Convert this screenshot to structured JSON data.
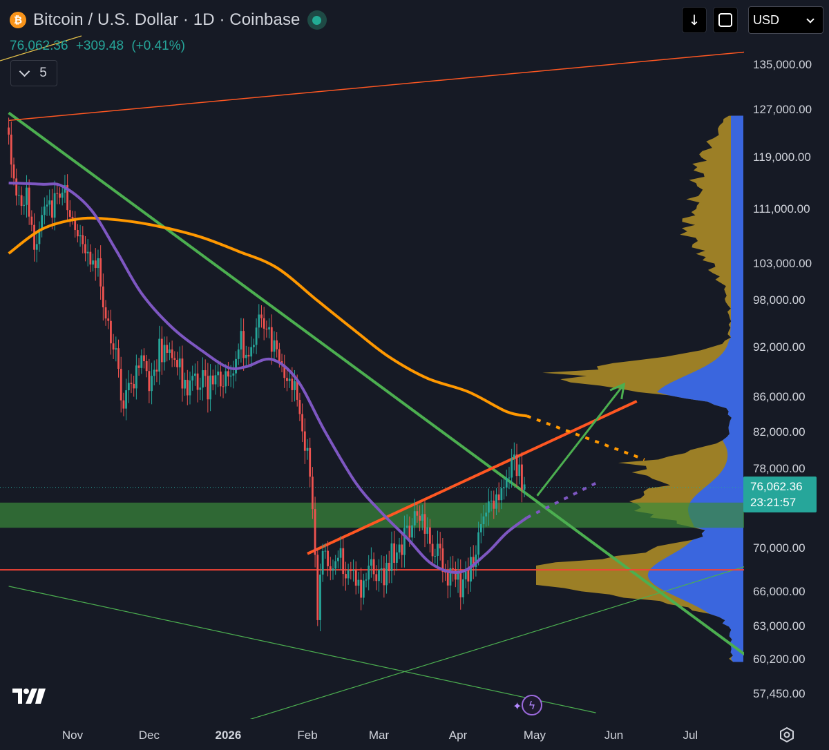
{
  "header": {
    "title": "Bitcoin / U.S. Dollar · 1D · Coinbase",
    "logo_glyph": "₿",
    "icon": "bitcoin-logo-icon"
  },
  "quote": {
    "price": "76,062.36",
    "change": "+309.48",
    "change_pct": "(+0.41%)"
  },
  "indicators_toggle": {
    "count": "5"
  },
  "toolbar": {
    "currency": "USD"
  },
  "price_tag": {
    "price": "76,062.36",
    "countdown": "23:21:57"
  },
  "colors": {
    "background": "#161a25",
    "up_candle": "#26a69a",
    "down_candle": "#ef5350",
    "ma_short": "#7e57c2",
    "ma_long": "#ff9800",
    "trend_green": "#4caf50",
    "trend_red": "#f44336",
    "volume_profile_gold": "#c9a227",
    "volume_profile_blue": "#2962ff",
    "support_zone": "#3a8a3a"
  },
  "chart_data": {
    "type": "candlestick",
    "symbol": "BTCUSD",
    "interval": "1D",
    "exchange": "Coinbase",
    "y_scale": "log",
    "ylim": [
      55000,
      142000
    ],
    "y_ticks": [
      "135,000.00",
      "127,000.00",
      "119,000.00",
      "111,000.00",
      "103,000.00",
      "98,000.00",
      "92,000.00",
      "86,000.00",
      "82,000.00",
      "78,000.00",
      "70,000.00",
      "66,000.00",
      "63,000.00",
      "60,200.00",
      "57,450.00"
    ],
    "x_ticks": [
      {
        "label": "Nov",
        "bold": false
      },
      {
        "label": "Dec",
        "bold": false
      },
      {
        "label": "2026",
        "bold": true
      },
      {
        "label": "Feb",
        "bold": false
      },
      {
        "label": "Mar",
        "bold": false
      },
      {
        "label": "Apr",
        "bold": false
      },
      {
        "label": "May",
        "bold": false
      },
      {
        "label": "Jun",
        "bold": false
      },
      {
        "label": "Jul",
        "bold": false
      }
    ],
    "xlim": [
      "2025-10-07",
      "2026-07-25"
    ],
    "price_anchors": [
      [
        "2025-10-07",
        124000
      ],
      [
        "2025-10-10",
        112000
      ],
      [
        "2025-10-14",
        112500
      ],
      [
        "2025-10-17",
        106500
      ],
      [
        "2025-10-21",
        110500
      ],
      [
        "2025-10-24",
        111200
      ],
      [
        "2025-10-29",
        113500
      ],
      [
        "2025-11-03",
        107000
      ],
      [
        "2025-11-07",
        103000
      ],
      [
        "2025-11-11",
        104500
      ],
      [
        "2025-11-14",
        96000
      ],
      [
        "2025-11-17",
        92500
      ],
      [
        "2025-11-21",
        85000
      ],
      [
        "2025-11-25",
        87500
      ],
      [
        "2025-11-28",
        91000
      ],
      [
        "2025-12-02",
        87000
      ],
      [
        "2025-12-05",
        91500
      ],
      [
        "2025-12-09",
        92000
      ],
      [
        "2025-12-12",
        90000
      ],
      [
        "2025-12-16",
        87000
      ],
      [
        "2025-12-20",
        88200
      ],
      [
        "2025-12-24",
        87200
      ],
      [
        "2025-12-28",
        87800
      ],
      [
        "2026-01-02",
        89500
      ],
      [
        "2026-01-06",
        92500
      ],
      [
        "2026-01-10",
        91000
      ],
      [
        "2026-01-14",
        96500
      ],
      [
        "2026-01-18",
        93000
      ],
      [
        "2026-01-22",
        89500
      ],
      [
        "2026-01-26",
        88000
      ],
      [
        "2026-01-30",
        83000
      ],
      [
        "2026-02-02",
        78000
      ],
      [
        "2026-02-05",
        63500
      ],
      [
        "2026-02-07",
        70000
      ],
      [
        "2026-02-10",
        68500
      ],
      [
        "2026-02-14",
        69000
      ],
      [
        "2026-02-18",
        67500
      ],
      [
        "2026-02-22",
        66500
      ],
      [
        "2026-02-26",
        68000
      ],
      [
        "2026-03-02",
        67000
      ],
      [
        "2026-03-06",
        69500
      ],
      [
        "2026-03-10",
        70500
      ],
      [
        "2026-03-14",
        72000
      ],
      [
        "2026-03-18",
        74000
      ],
      [
        "2026-03-21",
        70000
      ],
      [
        "2026-03-25",
        69000
      ],
      [
        "2026-03-29",
        67200
      ],
      [
        "2026-04-02",
        66500
      ],
      [
        "2026-04-06",
        68500
      ],
      [
        "2026-04-10",
        71500
      ],
      [
        "2026-04-14",
        74000
      ],
      [
        "2026-04-18",
        76500
      ],
      [
        "2026-04-22",
        78500
      ],
      [
        "2026-04-25",
        78000
      ],
      [
        "2026-04-27",
        76062
      ]
    ],
    "ma_short": [
      [
        "2025-10-07",
        115000
      ],
      [
        "2025-10-20",
        114800
      ],
      [
        "2025-10-28",
        114500
      ],
      [
        "2025-11-08",
        111000
      ],
      [
        "2025-11-18",
        105000
      ],
      [
        "2025-11-28",
        99000
      ],
      [
        "2025-12-10",
        94500
      ],
      [
        "2025-12-22",
        91500
      ],
      [
        "2026-01-01",
        89500
      ],
      [
        "2026-01-08",
        89600
      ],
      [
        "2026-01-18",
        90500
      ],
      [
        "2026-01-28",
        88000
      ],
      [
        "2026-02-08",
        82000
      ],
      [
        "2026-02-20",
        76500
      ],
      [
        "2026-03-02",
        73500
      ],
      [
        "2026-03-12",
        71000
      ],
      [
        "2026-03-22",
        68500
      ],
      [
        "2026-04-02",
        67800
      ],
      [
        "2026-04-12",
        69500
      ],
      [
        "2026-04-20",
        71500
      ],
      [
        "2026-04-28",
        73000
      ]
    ],
    "ma_long": [
      [
        "2025-10-07",
        104500
      ],
      [
        "2025-10-20",
        108000
      ],
      [
        "2025-11-03",
        109500
      ],
      [
        "2025-11-15",
        109500
      ],
      [
        "2025-12-01",
        108700
      ],
      [
        "2025-12-20",
        107000
      ],
      [
        "2026-01-05",
        104800
      ],
      [
        "2026-01-20",
        102500
      ],
      [
        "2026-02-05",
        98000
      ],
      [
        "2026-02-20",
        94000
      ],
      [
        "2026-03-05",
        90800
      ],
      [
        "2026-03-20",
        88200
      ],
      [
        "2026-04-05",
        86600
      ],
      [
        "2026-04-20",
        84300
      ],
      [
        "2026-04-28",
        83800
      ]
    ],
    "ma_long_projection": [
      [
        "2026-04-28",
        83800
      ],
      [
        "2026-06-13",
        79000
      ]
    ],
    "ma_short_projection": [
      [
        "2026-04-28",
        73000
      ],
      [
        "2026-05-25",
        76500
      ]
    ],
    "trendlines": [
      {
        "role": "descending-resistance",
        "from": [
          "2025-10-07",
          126500
        ],
        "to": [
          "2026-07-25",
          60200
        ]
      },
      {
        "role": "ascending-resistance",
        "from": [
          "2026-02-01",
          69500
        ],
        "to": [
          "2026-06-10",
          85500
        ]
      },
      {
        "role": "upper-channel",
        "from": [
          "2025-10-07",
          125200
        ],
        "to": [
          "2026-07-25",
          137500
        ]
      },
      {
        "role": "lower-channel",
        "from": [
          "2025-10-07",
          66500
        ],
        "to": [
          "2026-05-25",
          56000
        ]
      },
      {
        "role": "rising-support",
        "from": [
          "2026-01-01",
          55000
        ],
        "to": [
          "2026-07-25",
          68500
        ]
      }
    ],
    "horizontal_level": 68000,
    "support_zone": [
      72000,
      74500
    ],
    "projection_arrow": {
      "from": [
        "2026-05-02",
        75200
      ],
      "to": [
        "2026-06-05",
        87500
      ]
    },
    "volume_profile": {
      "side": "right",
      "price_range": [
        60000,
        126000
      ]
    }
  }
}
